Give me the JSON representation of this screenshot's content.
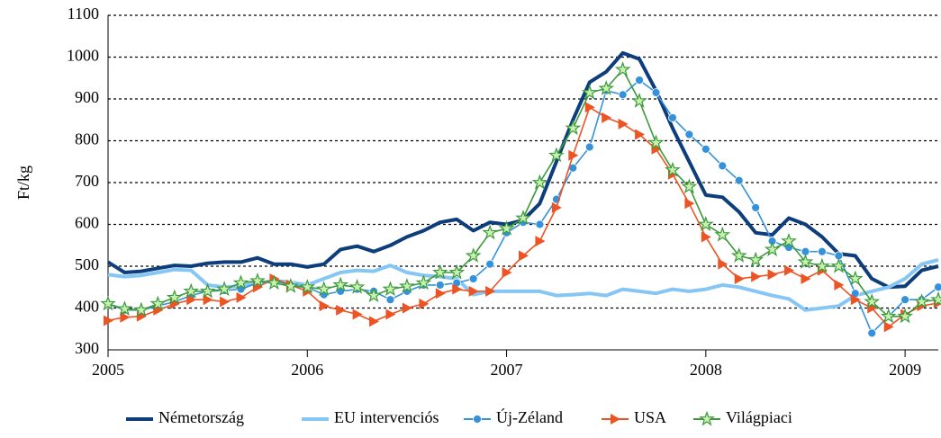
{
  "chart_data": {
    "type": "line",
    "y_label": "Ft/kg",
    "categories": [
      "2005",
      null,
      null,
      null,
      null,
      null,
      null,
      null,
      null,
      null,
      null,
      null,
      "2006",
      null,
      null,
      null,
      null,
      null,
      null,
      null,
      null,
      null,
      null,
      null,
      "2007",
      null,
      null,
      null,
      null,
      null,
      null,
      null,
      null,
      null,
      null,
      null,
      "2008",
      null,
      null,
      null,
      null,
      null,
      null,
      null,
      null,
      null,
      null,
      null,
      "2009",
      null,
      null
    ],
    "ylim": [
      300,
      1100
    ],
    "yticks": [
      300,
      400,
      500,
      600,
      700,
      800,
      900,
      1000,
      1100
    ],
    "grid": true,
    "legend": "bottom",
    "series": [
      {
        "name": "Németország",
        "color": "#0e3d7c",
        "marker": "none",
        "values": [
          510,
          485,
          488,
          495,
          502,
          500,
          507,
          510,
          510,
          520,
          505,
          505,
          498,
          505,
          540,
          548,
          535,
          550,
          570,
          585,
          605,
          612,
          585,
          605,
          600,
          610,
          650,
          750,
          850,
          940,
          965,
          1010,
          995,
          920,
          830,
          750,
          670,
          665,
          630,
          580,
          575,
          615,
          600,
          570,
          530,
          525,
          470,
          450,
          452,
          490,
          500
        ]
      },
      {
        "name": "EU intervenciós",
        "color": "#86c6f4",
        "marker": "none",
        "values": [
          480,
          475,
          478,
          485,
          492,
          490,
          455,
          450,
          452,
          460,
          465,
          462,
          455,
          470,
          485,
          490,
          488,
          502,
          485,
          478,
          475,
          470,
          432,
          440,
          440,
          440,
          440,
          430,
          432,
          435,
          430,
          445,
          440,
          435,
          445,
          440,
          445,
          455,
          450,
          440,
          430,
          422,
          395,
          400,
          405,
          430,
          440,
          450,
          470,
          505,
          515
        ]
      },
      {
        "name": "Új-Zéland",
        "color": "#3592da",
        "marker": "circle",
        "values": [
          410,
          395,
          395,
          405,
          415,
          430,
          440,
          442,
          445,
          460,
          465,
          455,
          450,
          432,
          440,
          445,
          440,
          420,
          440,
          455,
          455,
          460,
          470,
          505,
          580,
          605,
          600,
          660,
          735,
          785,
          920,
          910,
          945,
          915,
          855,
          815,
          780,
          740,
          705,
          640,
          560,
          545,
          535,
          535,
          525,
          435,
          340,
          380,
          420,
          420,
          450
        ]
      },
      {
        "name": "USA",
        "color": "#ec5424",
        "marker": "triangle",
        "values": [
          370,
          378,
          380,
          395,
          410,
          420,
          420,
          415,
          425,
          450,
          470,
          455,
          440,
          405,
          395,
          385,
          368,
          385,
          400,
          410,
          435,
          445,
          440,
          440,
          485,
          525,
          560,
          640,
          765,
          880,
          855,
          840,
          815,
          780,
          720,
          650,
          570,
          505,
          470,
          475,
          480,
          490,
          470,
          490,
          455,
          420,
          400,
          355,
          385,
          405,
          412
        ]
      },
      {
        "name": "Világpiaci",
        "color": "#3c9a3c",
        "marker": "star",
        "values": [
          410,
          398,
          395,
          410,
          425,
          440,
          440,
          445,
          460,
          465,
          460,
          452,
          450,
          445,
          455,
          450,
          430,
          445,
          452,
          460,
          485,
          485,
          525,
          580,
          590,
          615,
          700,
          765,
          830,
          915,
          925,
          970,
          895,
          795,
          730,
          690,
          600,
          575,
          525,
          515,
          540,
          560,
          510,
          500,
          500,
          470,
          415,
          380,
          380,
          415,
          420
        ]
      }
    ]
  }
}
